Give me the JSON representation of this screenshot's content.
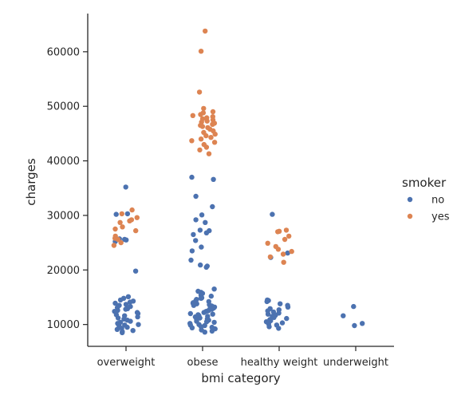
{
  "chart_data": {
    "type": "scatter",
    "subtype": "strip",
    "title": "",
    "xlabel": "bmi category",
    "ylabel": "charges",
    "categories": [
      "overweight",
      "obese",
      "healthy weight",
      "underweight"
    ],
    "ylim": [
      6000,
      67000
    ],
    "yticks": [
      10000,
      20000,
      30000,
      40000,
      50000,
      60000
    ],
    "ytick_labels": [
      "10000",
      "20000",
      "30000",
      "40000",
      "50000",
      "60000"
    ],
    "grid": false,
    "legend": {
      "title": "smoker",
      "placement": "right",
      "entries": [
        {
          "label": "no",
          "color": "#4c72b0"
        },
        {
          "label": "yes",
          "color": "#dd8452"
        }
      ]
    },
    "series": [
      {
        "name": "no",
        "color": "#4c72b0",
        "points": [
          {
            "category": "overweight",
            "values": [
              35200,
              30300,
              30200,
              25700,
              25600,
              25500,
              25200,
              19800,
              15100,
              14800,
              14500,
              14300,
              14100,
              13900,
              13700,
              13500,
              13300,
              13100,
              12900,
              12800,
              12600,
              12400,
              12200,
              12000,
              11800,
              11600,
              11400,
              11200,
              11000,
              10800,
              10600,
              10400,
              10200,
              10000,
              9900,
              9700,
              9500,
              9300,
              9100,
              8900,
              8700,
              8500
            ]
          },
          {
            "category": "obese",
            "values": [
              37000,
              36600,
              33500,
              31600,
              30100,
              29200,
              28700,
              27300,
              27200,
              26800,
              26500,
              25400,
              24200,
              23500,
              21800,
              20900,
              20700,
              20500,
              16500,
              16100,
              15900,
              15700,
              15400,
              15200,
              15000,
              14800,
              14600,
              14400,
              14200,
              14000,
              13800,
              13600,
              13400,
              13200,
              13000,
              12800,
              12600,
              12400,
              12200,
              12000,
              11800,
              11600,
              11400,
              11200,
              11000,
              10800,
              10600,
              10400,
              10200,
              10000,
              9800,
              9600,
              9400,
              9200,
              9000,
              8800,
              8600,
              14900,
              13900,
              12900,
              11900,
              10900,
              9900,
              13500,
              12500,
              11500,
              10500,
              9500
            ]
          },
          {
            "category": "healthy weight",
            "values": [
              30200,
              23100,
              22300,
              14500,
              14400,
              14200,
              13800,
              13500,
              13200,
              12900,
              12700,
              12500,
              12300,
              12100,
              11900,
              11700,
              11500,
              11300,
              11100,
              10900,
              10700,
              10500,
              10300,
              10100,
              9900,
              9600,
              9300
            ]
          },
          {
            "category": "underweight",
            "values": [
              13300,
              11600,
              10200,
              9800
            ]
          }
        ]
      },
      {
        "name": "yes",
        "color": "#dd8452",
        "points": [
          {
            "category": "overweight",
            "values": [
              31000,
              30300,
              29600,
              29200,
              29000,
              28700,
              27900,
              27500,
              27200,
              26200,
              25800,
              25600,
              25000,
              24500
            ]
          },
          {
            "category": "obese",
            "values": [
              63800,
              60100,
              52600,
              49600,
              49000,
              48800,
              48500,
              48300,
              48100,
              47900,
              47700,
              47500,
              47300,
              47100,
              46900,
              46700,
              46500,
              46300,
              46100,
              45800,
              45500,
              45200,
              44900,
              44600,
              44300,
              44000,
              43700,
              43400,
              43000,
              42500,
              42000,
              41300
            ]
          },
          {
            "category": "healthy weight",
            "values": [
              27300,
              27100,
              27000,
              26200,
              25600,
              24900,
              24300,
              23800,
              23400,
              22900,
              22400,
              21400
            ]
          }
        ]
      }
    ]
  }
}
